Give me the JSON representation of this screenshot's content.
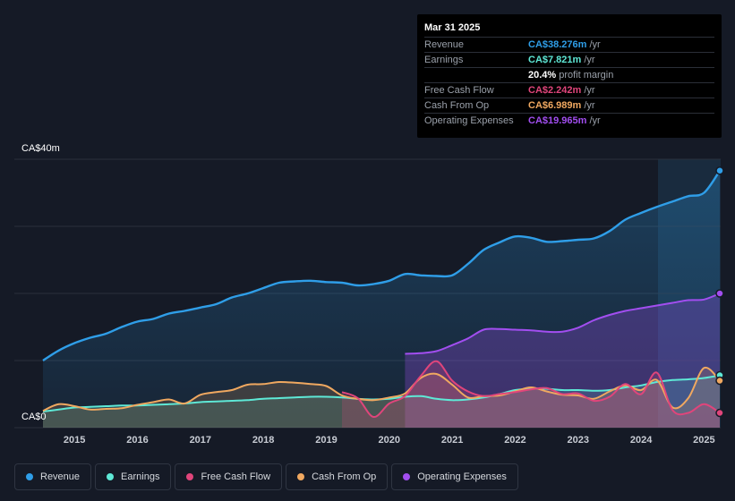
{
  "tooltip": {
    "date": "Mar 31 2025",
    "rows": [
      {
        "label": "Revenue",
        "value": "CA$38.276m",
        "unit": "/yr",
        "color": "#2f9ee8"
      },
      {
        "label": "Earnings",
        "value": "CA$7.821m",
        "unit": "/yr",
        "color": "#5ee8d6"
      },
      {
        "label": "",
        "value": "20.4%",
        "unit": "profit margin",
        "color": "#ffffff"
      },
      {
        "label": "Free Cash Flow",
        "value": "CA$2.242m",
        "unit": "/yr",
        "color": "#e0457b"
      },
      {
        "label": "Cash From Op",
        "value": "CA$6.989m",
        "unit": "/yr",
        "color": "#f0a860"
      },
      {
        "label": "Operating Expenses",
        "value": "CA$19.965m",
        "unit": "/yr",
        "color": "#a24ef0"
      }
    ]
  },
  "legend": [
    {
      "label": "Revenue",
      "color": "#2f9ee8"
    },
    {
      "label": "Earnings",
      "color": "#5ee8d6"
    },
    {
      "label": "Free Cash Flow",
      "color": "#e0457b"
    },
    {
      "label": "Cash From Op",
      "color": "#f0a860"
    },
    {
      "label": "Operating Expenses",
      "color": "#a24ef0"
    }
  ],
  "chart_data": {
    "type": "area",
    "y_top_label": "CA$40m",
    "y_bottom_label": "CA$0",
    "ylim": [
      0,
      40
    ],
    "xlim": [
      2014.5,
      2025.25
    ],
    "xticks": [
      2015,
      2016,
      2017,
      2018,
      2019,
      2020,
      2021,
      2022,
      2023,
      2024,
      2025
    ],
    "series": [
      {
        "name": "Revenue",
        "color": "#2f9ee8",
        "x": [
          2014.5,
          2014.75,
          2015,
          2015.25,
          2015.5,
          2015.75,
          2016,
          2016.25,
          2016.5,
          2016.75,
          2017,
          2017.25,
          2017.5,
          2017.75,
          2018,
          2018.25,
          2018.5,
          2018.75,
          2019,
          2019.25,
          2019.5,
          2019.75,
          2020,
          2020.25,
          2020.5,
          2020.75,
          2021,
          2021.25,
          2021.5,
          2021.75,
          2022,
          2022.25,
          2022.5,
          2022.75,
          2023,
          2023.25,
          2023.5,
          2023.75,
          2024,
          2024.25,
          2024.5,
          2024.75,
          2025,
          2025.25
        ],
        "values": [
          10,
          11.5,
          12.6,
          13.4,
          14,
          15,
          15.8,
          16.2,
          17,
          17.4,
          17.9,
          18.4,
          19.4,
          20,
          20.8,
          21.6,
          21.8,
          21.9,
          21.7,
          21.6,
          21.2,
          21.4,
          21.9,
          22.9,
          22.7,
          22.6,
          22.7,
          24.4,
          26.5,
          27.6,
          28.5,
          28.3,
          27.7,
          27.8,
          28,
          28.2,
          29.3,
          31,
          32,
          32.9,
          33.7,
          34.5,
          35,
          38.3
        ]
      },
      {
        "name": "Operating Expenses",
        "color": "#a24ef0",
        "x": [
          2020.25,
          2020.5,
          2020.75,
          2021,
          2021.25,
          2021.5,
          2021.75,
          2022,
          2022.25,
          2022.5,
          2022.75,
          2023,
          2023.25,
          2023.5,
          2023.75,
          2024,
          2024.25,
          2024.5,
          2024.75,
          2025,
          2025.25
        ],
        "values": [
          11,
          11.1,
          11.4,
          12.3,
          13.3,
          14.6,
          14.7,
          14.6,
          14.5,
          14.3,
          14.3,
          14.9,
          16,
          16.8,
          17.4,
          17.8,
          18.2,
          18.6,
          19,
          19.1,
          20
        ]
      },
      {
        "name": "Earnings",
        "color": "#5ee8d6",
        "x": [
          2014.5,
          2014.75,
          2015,
          2015.25,
          2015.5,
          2015.75,
          2016,
          2016.25,
          2016.5,
          2016.75,
          2017,
          2017.25,
          2017.5,
          2017.75,
          2018,
          2018.25,
          2018.5,
          2018.75,
          2019,
          2019.25,
          2019.5,
          2019.75,
          2020,
          2020.25,
          2020.5,
          2020.75,
          2021,
          2021.25,
          2021.5,
          2021.75,
          2022,
          2022.25,
          2022.5,
          2022.75,
          2023,
          2023.25,
          2023.5,
          2023.75,
          2024,
          2024.25,
          2024.5,
          2024.75,
          2025,
          2025.25
        ],
        "values": [
          2.4,
          2.7,
          3,
          3.1,
          3.2,
          3.3,
          3.3,
          3.4,
          3.5,
          3.6,
          3.8,
          3.9,
          4,
          4.1,
          4.3,
          4.4,
          4.5,
          4.6,
          4.6,
          4.5,
          4.3,
          4.2,
          4.3,
          4.6,
          4.7,
          4.3,
          4.1,
          4.2,
          4.5,
          5,
          5.6,
          5.8,
          5.8,
          5.6,
          5.6,
          5.5,
          5.6,
          6,
          6.3,
          6.8,
          7.1,
          7.2,
          7.4,
          7.8
        ]
      },
      {
        "name": "Cash From Op",
        "color": "#f0a860",
        "x": [
          2014.5,
          2014.75,
          2015,
          2015.25,
          2015.5,
          2015.75,
          2016,
          2016.25,
          2016.5,
          2016.75,
          2017,
          2017.25,
          2017.5,
          2017.75,
          2018,
          2018.25,
          2018.5,
          2018.75,
          2019,
          2019.25,
          2019.5,
          2019.75,
          2020,
          2020.25,
          2020.5,
          2020.75,
          2021,
          2021.25,
          2021.5,
          2021.75,
          2022,
          2022.25,
          2022.5,
          2022.75,
          2023,
          2023.25,
          2023.5,
          2023.75,
          2024,
          2024.25,
          2024.5,
          2024.75,
          2025,
          2025.25
        ],
        "values": [
          2.5,
          3.5,
          3.2,
          2.7,
          2.8,
          2.9,
          3.4,
          3.8,
          4.2,
          3.6,
          4.9,
          5.3,
          5.6,
          6.4,
          6.5,
          6.8,
          6.7,
          6.5,
          6.2,
          4.8,
          4.3,
          4.1,
          4.5,
          5.1,
          7.4,
          8,
          6.4,
          4.5,
          4.7,
          4.8,
          5.4,
          6,
          5.4,
          4.9,
          4.8,
          4.3,
          5.4,
          6.3,
          5.6,
          7.1,
          3,
          4.4,
          8.9,
          7
        ]
      },
      {
        "name": "Free Cash Flow",
        "color": "#e0457b",
        "x": [
          2019.25,
          2019.5,
          2019.75,
          2020,
          2020.25,
          2020.5,
          2020.75,
          2021,
          2021.25,
          2021.5,
          2021.75,
          2022,
          2022.25,
          2022.5,
          2022.75,
          2023,
          2023.25,
          2023.5,
          2023.75,
          2024,
          2024.25,
          2024.5,
          2024.75,
          2025,
          2025.25
        ],
        "values": [
          5.3,
          4.4,
          1.6,
          3.6,
          4.7,
          7.7,
          9.9,
          7,
          5.4,
          4.7,
          5,
          5.3,
          5.7,
          5.9,
          5,
          5.1,
          4,
          4.6,
          6.5,
          5,
          8.2,
          2.6,
          2.2,
          3.5,
          2.2
        ]
      }
    ]
  }
}
